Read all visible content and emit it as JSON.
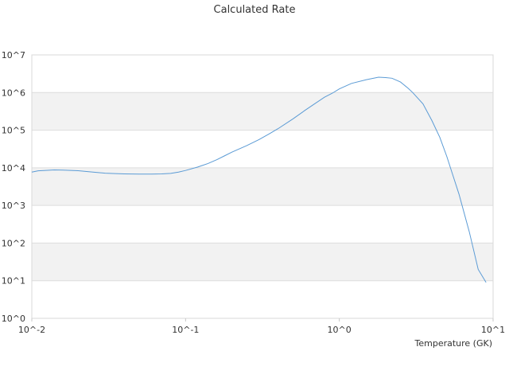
{
  "chart_data": {
    "type": "line",
    "title": "Calculated Rate",
    "xlabel": "Temperature (GK)",
    "ylabel": "",
    "x_scale": "log",
    "y_scale": "log",
    "xlim": [
      0.01,
      10
    ],
    "ylim": [
      1,
      10000000
    ],
    "x_tick_values": [
      0.01,
      0.1,
      1,
      10
    ],
    "x_tick_labels": [
      "10^-2",
      "10^-1",
      "10^0",
      "10^1"
    ],
    "y_tick_values": [
      1,
      10,
      100,
      1000,
      10000,
      100000,
      1000000,
      10000000
    ],
    "y_tick_labels": [
      "10^0",
      "10^1",
      "10^2",
      "10^3",
      "10^4",
      "10^5",
      "10^6",
      "10^7"
    ],
    "grid": true,
    "alternating_bands": true,
    "band_color": "#f2f2f2",
    "grid_color": "#dddddd",
    "line_color": "#5b9bd5",
    "series": [
      {
        "x": [
          0.01,
          0.011,
          0.012,
          0.014,
          0.016,
          0.02,
          0.025,
          0.03,
          0.035,
          0.04,
          0.05,
          0.06,
          0.07,
          0.08,
          0.09,
          0.1,
          0.12,
          0.14,
          0.16,
          0.18,
          0.2,
          0.25,
          0.3,
          0.35,
          0.4,
          0.5,
          0.6,
          0.7,
          0.8,
          0.9,
          1.0,
          1.2,
          1.5,
          1.8,
          2.0,
          2.2,
          2.5,
          2.8,
          3.0,
          3.5,
          4.0,
          4.5,
          5.0,
          5.5,
          6.0,
          7.0,
          8.0,
          9.0
        ],
        "y": [
          7700,
          8300,
          8500,
          8800,
          8700,
          8400,
          7700,
          7200,
          7000,
          6900,
          6800,
          6800,
          6900,
          7100,
          7700,
          8500,
          10500,
          13000,
          16500,
          21000,
          26000,
          39000,
          56000,
          80000,
          110000,
          200000,
          340000,
          520000,
          750000,
          960000,
          1250000,
          1750000,
          2200000,
          2550000,
          2500000,
          2400000,
          1900000,
          1300000,
          1000000,
          500000,
          180000,
          65000,
          20000,
          6000,
          2000,
          200,
          20,
          9
        ]
      }
    ]
  }
}
